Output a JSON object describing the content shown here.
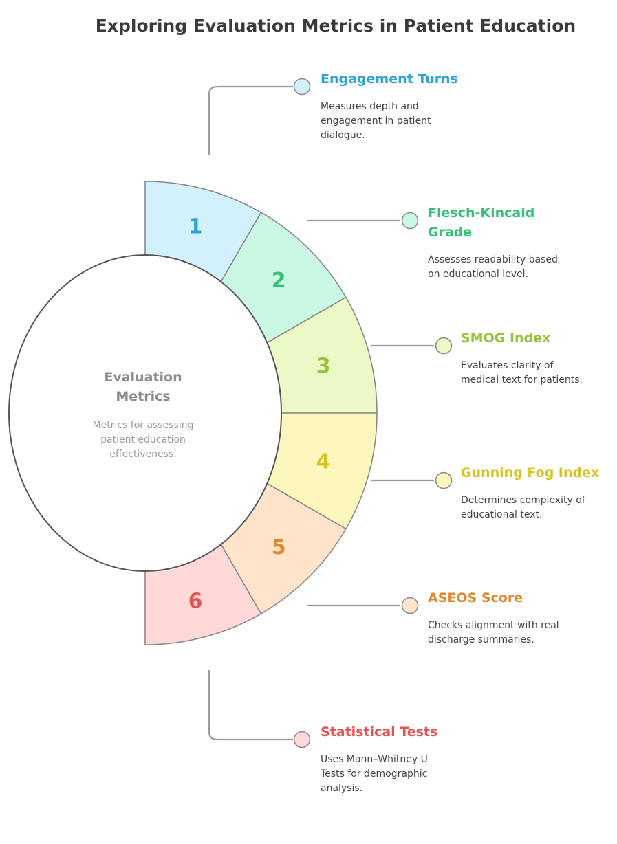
{
  "title": "Exploring Evaluation Metrics in Patient Education",
  "center": {
    "title_lines": [
      "Evaluation",
      "Metrics"
    ],
    "desc_lines": [
      "Metrics for assessing",
      "patient education",
      "effectiveness."
    ]
  },
  "items": [
    {
      "number": "1",
      "title_lines": [
        "Engagement Turns"
      ],
      "desc_lines": [
        "Measures depth and",
        "engagement in patient",
        "dialogue."
      ],
      "fill": "#d3f1fc",
      "color": "#2ea3d5"
    },
    {
      "number": "2",
      "title_lines": [
        "Flesch-Kincaid",
        "Grade"
      ],
      "desc_lines": [
        "Assesses readability based",
        "on educational level."
      ],
      "fill": "#cbf8e3",
      "color": "#36bf79"
    },
    {
      "number": "3",
      "title_lines": [
        "SMOG Index"
      ],
      "desc_lines": [
        "Evaluates clarity of",
        "medical text for patients."
      ],
      "fill": "#eaf9c5",
      "color": "#94c43a"
    },
    {
      "number": "4",
      "title_lines": [
        "Gunning Fog Index"
      ],
      "desc_lines": [
        "Determines complexity of",
        "educational text."
      ],
      "fill": "#fdf7bd",
      "color": "#d6c521"
    },
    {
      "number": "5",
      "title_lines": [
        "ASEOS Score"
      ],
      "desc_lines": [
        "Checks alignment with real",
        "discharge summaries."
      ],
      "fill": "#ffe4cb",
      "color": "#e0882e"
    },
    {
      "number": "6",
      "title_lines": [
        "Statistical Tests"
      ],
      "desc_lines": [
        "Uses Mann–Whitney U",
        "Tests for demographic",
        "analysis."
      ],
      "fill": "#ffd8d8",
      "color": "#e55353"
    }
  ]
}
